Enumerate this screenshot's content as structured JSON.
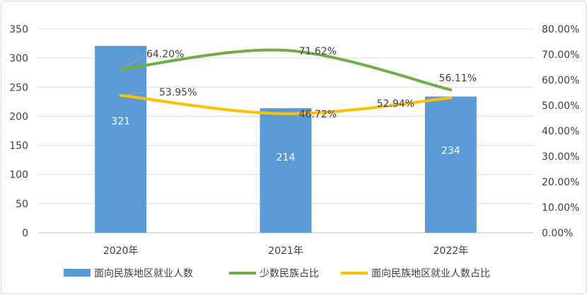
{
  "chart_data": {
    "type": "bar+line",
    "categories": [
      "2020年",
      "2021年",
      "2022年"
    ],
    "bar_series": {
      "name": "面向民族地区就业人数",
      "values": [
        321,
        214,
        234
      ],
      "color": "#5b9bd5",
      "data_labels": [
        "321",
        "214",
        "234"
      ]
    },
    "line_series": [
      {
        "name": "少数民族占比",
        "values": [
          64.2,
          71.62,
          56.11
        ],
        "color": "#70ad47",
        "data_labels": [
          "64.20%",
          "71.62%",
          "56.11%"
        ]
      },
      {
        "name": "面向民族地区就业人数占比",
        "values": [
          53.95,
          46.72,
          52.94
        ],
        "color": "#ffc000",
        "data_labels": [
          "53.95%",
          "46.72%",
          "52.94%"
        ]
      }
    ],
    "y_left": {
      "ylim": [
        0,
        350
      ],
      "ticks": [
        "0",
        "50",
        "100",
        "150",
        "200",
        "250",
        "300",
        "350"
      ]
    },
    "y_right": {
      "ylim": [
        0,
        80
      ],
      "ticks": [
        "0.00%",
        "10.00%",
        "20.00%",
        "30.00%",
        "40.00%",
        "50.00%",
        "60.00%",
        "70.00%",
        "80.00%"
      ]
    },
    "gridlines": true,
    "legend_position": "bottom"
  }
}
